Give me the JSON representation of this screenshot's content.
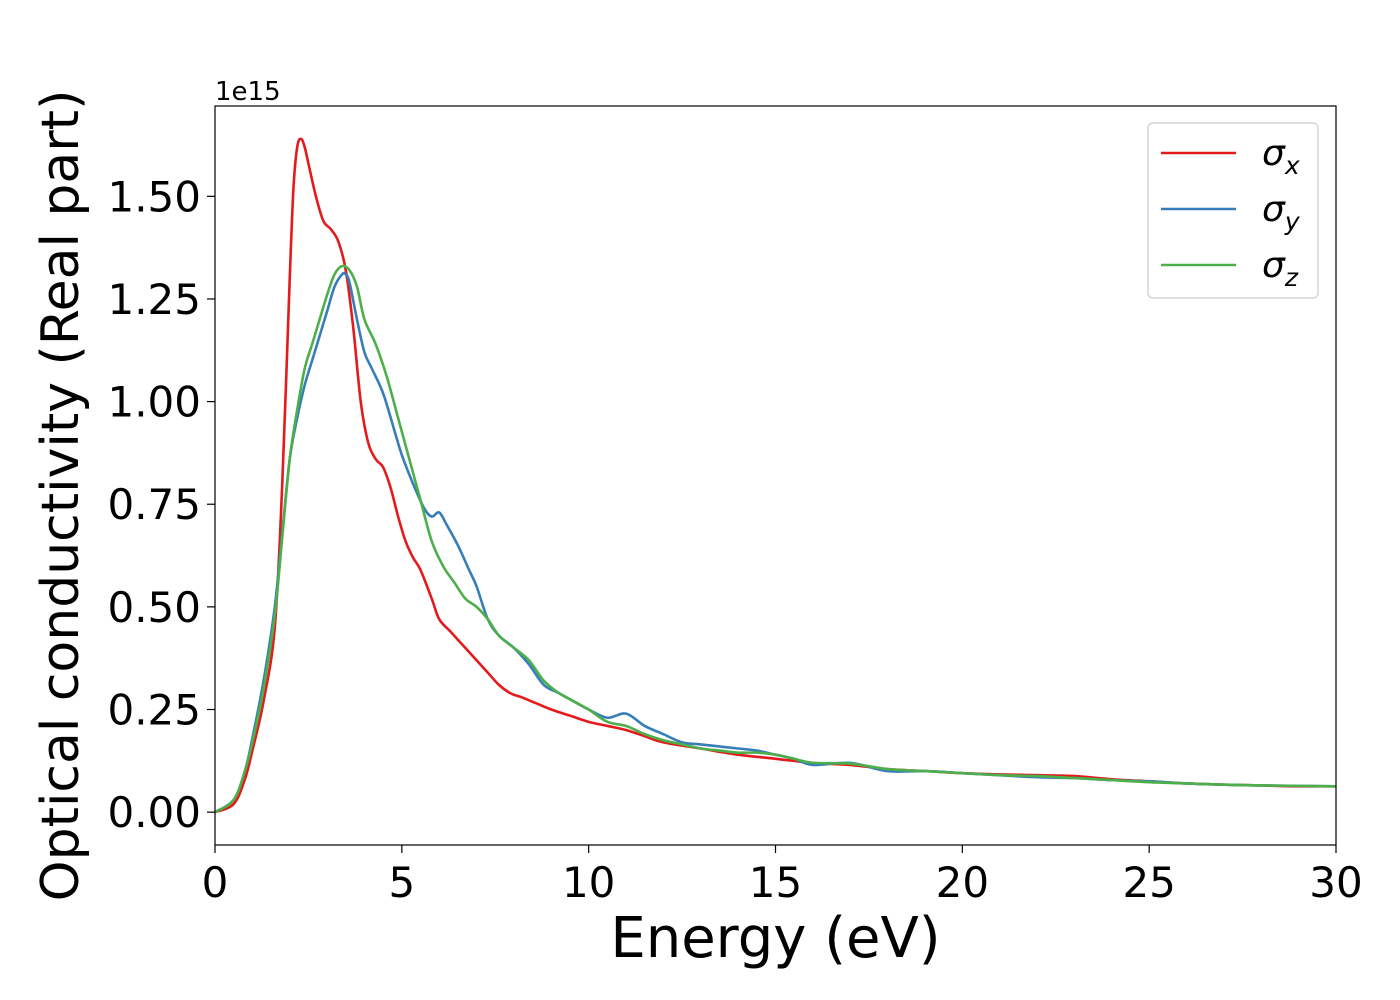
{
  "chart_data": {
    "type": "line",
    "xlabel": "Energy (eV)",
    "ylabel": "Optical conductivity (Real part)",
    "y_offset_label": "1e15",
    "xlim": [
      0,
      30
    ],
    "ylim": [
      -0.08,
      1.72
    ],
    "x_ticks": [
      0,
      5,
      10,
      15,
      20,
      25,
      30
    ],
    "x_tick_labels": [
      "0",
      "5",
      "10",
      "15",
      "20",
      "25",
      "30"
    ],
    "y_ticks": [
      0.0,
      0.25,
      0.5,
      0.75,
      1.0,
      1.25,
      1.5
    ],
    "y_tick_labels": [
      "0.00",
      "0.25",
      "0.50",
      "0.75",
      "1.00",
      "1.25",
      "1.50"
    ],
    "grid": false,
    "legend_position": "top-right",
    "series": [
      {
        "name": "σx",
        "legend_main": "σ",
        "legend_sub": "x",
        "color": "#e41a1c",
        "x": [
          0,
          0.5,
          0.8,
          1.0,
          1.3,
          1.6,
          1.8,
          2.0,
          2.1,
          2.2,
          2.3,
          2.4,
          2.5,
          2.7,
          2.9,
          3.1,
          3.3,
          3.5,
          3.7,
          3.9,
          4.1,
          4.3,
          4.5,
          4.7,
          4.9,
          5.1,
          5.3,
          5.5,
          5.8,
          6.0,
          6.3,
          6.5,
          6.8,
          7.0,
          7.3,
          7.6,
          7.9,
          8.2,
          8.6,
          9.0,
          9.5,
          10.0,
          10.5,
          11.0,
          11.5,
          12.0,
          13.0,
          14.0,
          15.0,
          16.0,
          17.0,
          18.0,
          19.0,
          20.0,
          21.0,
          22.0,
          23.0,
          24.0,
          25.0,
          26.0,
          27.0,
          28.0,
          29.0,
          30.0
        ],
        "values": [
          0.0,
          0.02,
          0.08,
          0.15,
          0.27,
          0.45,
          0.8,
          1.3,
          1.52,
          1.62,
          1.64,
          1.62,
          1.58,
          1.5,
          1.44,
          1.42,
          1.39,
          1.32,
          1.18,
          1.0,
          0.9,
          0.86,
          0.84,
          0.79,
          0.72,
          0.66,
          0.62,
          0.59,
          0.52,
          0.47,
          0.44,
          0.42,
          0.39,
          0.37,
          0.34,
          0.31,
          0.29,
          0.28,
          0.265,
          0.25,
          0.235,
          0.22,
          0.21,
          0.2,
          0.185,
          0.17,
          0.155,
          0.14,
          0.13,
          0.12,
          0.115,
          0.105,
          0.1,
          0.095,
          0.092,
          0.09,
          0.088,
          0.08,
          0.075,
          0.07,
          0.067,
          0.065,
          0.063,
          0.063
        ]
      },
      {
        "name": "σy",
        "legend_main": "σ",
        "legend_sub": "y",
        "color": "#377eb8",
        "x": [
          0,
          0.5,
          0.8,
          1.0,
          1.3,
          1.6,
          1.8,
          2.0,
          2.2,
          2.4,
          2.6,
          2.8,
          3.0,
          3.2,
          3.4,
          3.5,
          3.6,
          3.8,
          4.0,
          4.2,
          4.5,
          4.8,
          5.0,
          5.3,
          5.6,
          5.8,
          6.0,
          6.2,
          6.5,
          6.8,
          7.0,
          7.3,
          7.6,
          8.0,
          8.4,
          8.8,
          9.2,
          9.6,
          10.0,
          10.5,
          11.0,
          11.5,
          12.0,
          12.5,
          13.0,
          13.5,
          14.0,
          14.5,
          15.0,
          15.5,
          16.0,
          17.0,
          18.0,
          19.0,
          20.0,
          21.0,
          22.0,
          23.0,
          24.0,
          25.0,
          26.0,
          27.0,
          28.0,
          29.0,
          30.0
        ],
        "values": [
          0.0,
          0.03,
          0.1,
          0.18,
          0.32,
          0.5,
          0.68,
          0.86,
          0.96,
          1.04,
          1.1,
          1.16,
          1.22,
          1.28,
          1.31,
          1.31,
          1.29,
          1.2,
          1.12,
          1.08,
          1.02,
          0.93,
          0.87,
          0.8,
          0.74,
          0.72,
          0.73,
          0.7,
          0.65,
          0.59,
          0.55,
          0.47,
          0.43,
          0.4,
          0.36,
          0.31,
          0.29,
          0.27,
          0.25,
          0.23,
          0.24,
          0.21,
          0.19,
          0.17,
          0.165,
          0.16,
          0.155,
          0.15,
          0.14,
          0.13,
          0.115,
          0.12,
          0.1,
          0.1,
          0.095,
          0.09,
          0.085,
          0.083,
          0.078,
          0.075,
          0.07,
          0.067,
          0.065,
          0.064,
          0.063
        ]
      },
      {
        "name": "σz",
        "legend_main": "σ",
        "legend_sub": "z",
        "color": "#4daf4a",
        "x": [
          0,
          0.5,
          0.8,
          1.0,
          1.3,
          1.6,
          1.8,
          2.0,
          2.2,
          2.4,
          2.6,
          2.8,
          3.0,
          3.2,
          3.4,
          3.6,
          3.8,
          4.0,
          4.3,
          4.6,
          4.9,
          5.2,
          5.5,
          5.8,
          6.1,
          6.4,
          6.7,
          7.0,
          7.3,
          7.6,
          8.0,
          8.4,
          8.8,
          9.2,
          9.6,
          10.0,
          10.5,
          11.0,
          11.5,
          12.0,
          12.5,
          13.0,
          13.5,
          14.0,
          14.5,
          15.0,
          15.5,
          16.0,
          17.0,
          18.0,
          19.0,
          20.0,
          21.0,
          22.0,
          23.0,
          24.0,
          25.0,
          26.0,
          27.0,
          28.0,
          29.0,
          30.0
        ],
        "values": [
          0.0,
          0.03,
          0.1,
          0.17,
          0.3,
          0.48,
          0.67,
          0.86,
          0.98,
          1.08,
          1.14,
          1.2,
          1.26,
          1.31,
          1.33,
          1.32,
          1.28,
          1.2,
          1.14,
          1.06,
          0.96,
          0.86,
          0.76,
          0.66,
          0.6,
          0.56,
          0.52,
          0.5,
          0.47,
          0.43,
          0.4,
          0.37,
          0.32,
          0.29,
          0.27,
          0.25,
          0.22,
          0.21,
          0.19,
          0.175,
          0.165,
          0.155,
          0.15,
          0.145,
          0.145,
          0.14,
          0.13,
          0.12,
          0.118,
          0.105,
          0.1,
          0.095,
          0.09,
          0.088,
          0.083,
          0.078,
          0.073,
          0.07,
          0.067,
          0.065,
          0.064,
          0.063
        ]
      }
    ]
  }
}
